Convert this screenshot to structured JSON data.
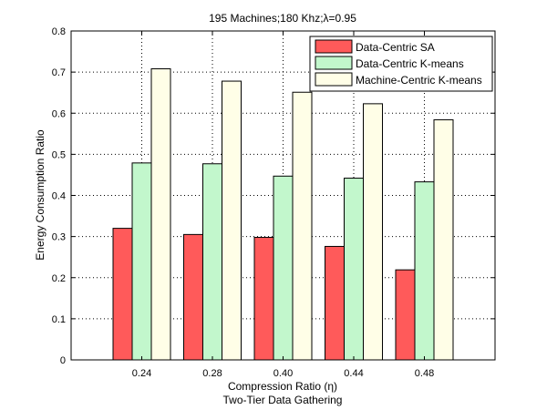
{
  "chart_data": {
    "type": "bar",
    "title": "195 Machines;180 Khz;λ=0.95",
    "xlabel": "Compression Ratio (η)",
    "xlabel2": "Two-Tier Data Gathering",
    "ylabel": "Energy Consumption Ratio",
    "categories": [
      "0.24",
      "0.28",
      "0.40",
      "0.44",
      "0.48"
    ],
    "yticks": [
      "0",
      "0.1",
      "0.2",
      "0.3",
      "0.4",
      "0.5",
      "0.6",
      "0.7",
      "0.8"
    ],
    "ylim": [
      0,
      0.8
    ],
    "grid": true,
    "legend_position": "top-right",
    "series": [
      {
        "name": "Data-Centric SA",
        "color": "#ff5a5a",
        "values": [
          0.32,
          0.305,
          0.298,
          0.276,
          0.219
        ]
      },
      {
        "name": "Data-Centric K-means",
        "color": "#c2f7cc",
        "values": [
          0.479,
          0.477,
          0.447,
          0.442,
          0.433
        ]
      },
      {
        "name": "Machine-Centric K-means",
        "color": "#fffee7",
        "values": [
          0.708,
          0.678,
          0.651,
          0.623,
          0.584
        ]
      }
    ]
  }
}
